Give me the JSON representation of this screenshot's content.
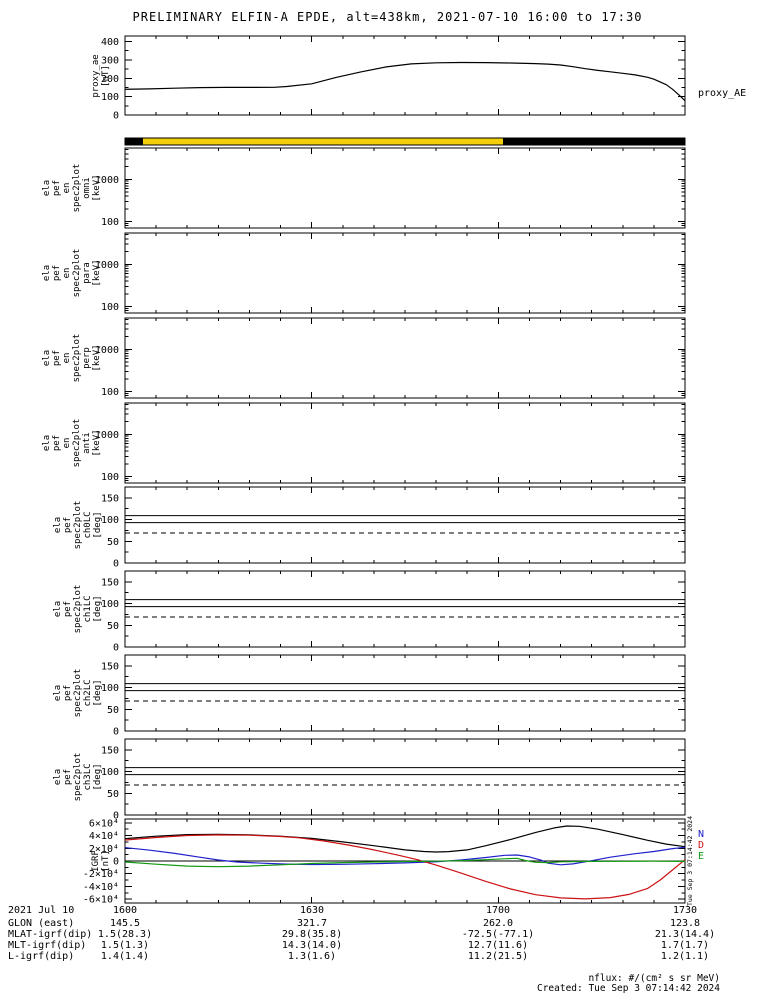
{
  "title": "PRELIMINARY ELFIN-A EPDE, alt=438km, 2021-07-10 16:00 to 17:30",
  "side": {
    "proxy_right_label": "proxy_AE",
    "vertical_timestamp": "Tue Sep 3 07:14:42 2024",
    "igrf_legend": [
      {
        "label": "N",
        "color": "#2020cc"
      },
      {
        "label": "D",
        "color": "#cc1111"
      },
      {
        "label": "E",
        "color": "#119911"
      }
    ]
  },
  "bottom": {
    "date": "2021 Jul 10",
    "time_ticks": [
      "1600",
      "1630",
      "1700",
      "1730"
    ],
    "rows": [
      {
        "label": "GLON (east)",
        "values": [
          "145.5",
          "321.7",
          "262.0",
          "123.8"
        ]
      },
      {
        "label": "MLAT-igrf(dip)",
        "values": [
          "1.5(28.3)",
          "29.8(35.8)",
          "-72.5(-77.1)",
          "21.3(14.4)"
        ]
      },
      {
        "label": "MLT-igrf(dip)",
        "values": [
          "1.5(1.3)",
          "14.3(14.0)",
          "12.7(11.6)",
          "1.7(1.7)"
        ]
      },
      {
        "label": "L-igrf(dip)",
        "values": [
          "1.4(1.4)",
          "1.3(1.6)",
          "11.2(21.5)",
          "1.2(1.1)"
        ]
      }
    ]
  },
  "footer": {
    "nflux": "nflux: #/(cm² s sr MeV)",
    "created": "Created: Tue Sep 3 07:14:42 2024"
  },
  "chart_data": {
    "type": "line",
    "description": "Multi-panel time-series plot (ELFIN-A EPDE survey), x axis 16:00 to 17:30 UT on 2021-07-10",
    "x_axis": {
      "minutes_range": [
        0,
        90
      ],
      "major_minutes": [
        0,
        30,
        60,
        90
      ],
      "minor_step_minutes": 5,
      "tick_labels": [
        "1600",
        "1630",
        "1700",
        "1730"
      ],
      "date": "2021 Jul 10"
    },
    "panels": [
      {
        "id": "proxy",
        "kind": "line",
        "ylabel_lines": [
          "proxy_ae",
          "[nT]"
        ],
        "ylim": [
          0,
          430
        ],
        "yticks": [
          {
            "v": 0,
            "label": "0"
          },
          {
            "v": 100,
            "label": "100"
          },
          {
            "v": 200,
            "label": "200"
          },
          {
            "v": 300,
            "label": "300"
          },
          {
            "v": 400,
            "label": "400"
          }
        ],
        "yminor": [
          50,
          150,
          250,
          350
        ],
        "series": [
          {
            "name": "proxy_AE",
            "color": "#000000",
            "x": [
              0,
              4,
              8,
              12,
              16,
              20,
              24,
              26,
              30,
              34,
              38,
              42,
              46,
              50,
              54,
              58,
              62,
              66,
              68,
              70,
              72,
              74,
              76,
              78,
              80,
              82,
              84,
              85,
              86,
              87,
              88,
              89,
              90
            ],
            "y": [
              140,
              142,
              146,
              149,
              150,
              150,
              151,
              155,
              170,
              205,
              235,
              262,
              278,
              284,
              286,
              285,
              283,
              280,
              277,
              272,
              263,
              252,
              243,
              235,
              227,
              218,
              205,
              195,
              180,
              165,
              140,
              110,
              78
            ]
          }
        ]
      },
      {
        "id": "bar",
        "kind": "strip",
        "segments": [
          {
            "from": 0,
            "to": 0.032,
            "color": "#000000"
          },
          {
            "from": 0.032,
            "to": 0.675,
            "color": "#f3cf0a"
          },
          {
            "from": 0.675,
            "to": 1,
            "color": "#000000"
          }
        ]
      },
      {
        "id": "omni",
        "kind": "empty",
        "yscale": "log",
        "ylabel_lines": [
          "ela",
          "pef",
          "en",
          "spec2plot",
          "omni",
          "[keV]"
        ],
        "ylim": [
          70,
          5500
        ],
        "yticks": [
          {
            "v": 100,
            "label": "100"
          },
          {
            "v": 1000,
            "label": "1000"
          }
        ],
        "yminor": [
          80,
          90,
          200,
          300,
          400,
          500,
          600,
          700,
          800,
          900,
          2000,
          3000,
          4000,
          5000
        ],
        "series": []
      },
      {
        "id": "para",
        "kind": "empty",
        "yscale": "log",
        "ylabel_lines": [
          "ela",
          "pef",
          "en",
          "spec2plot",
          "para",
          "[keV]"
        ],
        "ylim": [
          70,
          5500
        ],
        "yticks": [
          {
            "v": 100,
            "label": "100"
          },
          {
            "v": 1000,
            "label": "1000"
          }
        ],
        "yminor": [
          80,
          90,
          200,
          300,
          400,
          500,
          600,
          700,
          800,
          900,
          2000,
          3000,
          4000,
          5000
        ],
        "series": []
      },
      {
        "id": "perp",
        "kind": "empty",
        "yscale": "log",
        "ylabel_lines": [
          "ela",
          "pef",
          "en",
          "spec2plot",
          "perp",
          "[keV]"
        ],
        "ylim": [
          70,
          5500
        ],
        "yticks": [
          {
            "v": 100,
            "label": "100"
          },
          {
            "v": 1000,
            "label": "1000"
          }
        ],
        "yminor": [
          80,
          90,
          200,
          300,
          400,
          500,
          600,
          700,
          800,
          900,
          2000,
          3000,
          4000,
          5000
        ],
        "series": []
      },
      {
        "id": "anti",
        "kind": "empty",
        "yscale": "log",
        "ylabel_lines": [
          "ela",
          "pef",
          "en",
          "spec2plot",
          "anti",
          "[keV]"
        ],
        "ylim": [
          70,
          5500
        ],
        "yticks": [
          {
            "v": 100,
            "label": "100"
          },
          {
            "v": 1000,
            "label": "1000"
          }
        ],
        "yminor": [
          80,
          90,
          200,
          300,
          400,
          500,
          600,
          700,
          800,
          900,
          2000,
          3000,
          4000,
          5000
        ],
        "series": []
      },
      {
        "id": "ch0",
        "kind": "hlines",
        "ylabel_lines": [
          "ela",
          "pef",
          "spec2plot",
          "ch0LC",
          "[deg]"
        ],
        "ylim": [
          0,
          175
        ],
        "yticks": [
          {
            "v": 0,
            "label": "0"
          },
          {
            "v": 50,
            "label": "50"
          },
          {
            "v": 100,
            "label": "100"
          },
          {
            "v": 150,
            "label": "150"
          }
        ],
        "yminor": [
          25,
          75,
          125
        ],
        "hlines_solid": [
          109,
          93
        ],
        "hlines_dashed": [
          69
        ],
        "series": []
      },
      {
        "id": "ch1",
        "kind": "hlines",
        "ylabel_lines": [
          "ela",
          "pef",
          "spec2plot",
          "ch1LC",
          "[deg]"
        ],
        "ylim": [
          0,
          175
        ],
        "yticks": [
          {
            "v": 0,
            "label": "0"
          },
          {
            "v": 50,
            "label": "50"
          },
          {
            "v": 100,
            "label": "100"
          },
          {
            "v": 150,
            "label": "150"
          }
        ],
        "yminor": [
          25,
          75,
          125
        ],
        "hlines_solid": [
          109,
          93
        ],
        "hlines_dashed": [
          69
        ],
        "series": []
      },
      {
        "id": "ch2",
        "kind": "hlines",
        "ylabel_lines": [
          "ela",
          "pef",
          "spec2plot",
          "ch2LC",
          "[deg]"
        ],
        "ylim": [
          0,
          175
        ],
        "yticks": [
          {
            "v": 0,
            "label": "0"
          },
          {
            "v": 50,
            "label": "50"
          },
          {
            "v": 100,
            "label": "100"
          },
          {
            "v": 150,
            "label": "150"
          }
        ],
        "yminor": [
          25,
          75,
          125
        ],
        "hlines_solid": [
          109,
          93
        ],
        "hlines_dashed": [
          69
        ],
        "series": []
      },
      {
        "id": "ch3",
        "kind": "hlines",
        "ylabel_lines": [
          "ela",
          "pef",
          "spec2plot",
          "ch3LC",
          "[deg]"
        ],
        "ylim": [
          0,
          175
        ],
        "yticks": [
          {
            "v": 0,
            "label": "0"
          },
          {
            "v": 50,
            "label": "50"
          },
          {
            "v": 100,
            "label": "100"
          },
          {
            "v": 150,
            "label": "150"
          }
        ],
        "yminor": [
          25,
          75,
          125
        ],
        "hlines_solid": [
          109,
          93
        ],
        "hlines_dashed": [
          69
        ],
        "series": []
      },
      {
        "id": "igrf",
        "kind": "line",
        "ylabel_lines": [
          "IGRF",
          "[nT]"
        ],
        "ylim": [
          -66000,
          66000
        ],
        "yticks": [
          {
            "v": 60000,
            "label": "6×10⁴"
          },
          {
            "v": 40000,
            "label": "4×10⁴"
          },
          {
            "v": 20000,
            "label": "2×10⁴"
          },
          {
            "v": 0,
            "label": "0"
          },
          {
            "v": -20000,
            "label": "-2×10⁴"
          },
          {
            "v": -40000,
            "label": "-4×10⁴"
          },
          {
            "v": -60000,
            "label": "-6×10⁴"
          }
        ],
        "yminor": [
          -50000,
          -30000,
          -10000,
          10000,
          30000,
          50000
        ],
        "zero_line": true,
        "series": [
          {
            "name": "Bmag",
            "color": "#000000",
            "x": [
              0,
              5,
              10,
              15,
              20,
              25,
              30,
              35,
              40,
              45,
              48,
              50,
              52,
              55,
              58,
              62,
              66,
              69,
              71,
              73,
              76,
              80,
              84,
              87,
              90
            ],
            "y": [
              35000,
              39000,
              41500,
              42000,
              41000,
              39000,
              35500,
              30000,
              24000,
              17500,
              15000,
              14200,
              14800,
              17500,
              24000,
              34000,
              45000,
              52000,
              55000,
              54500,
              50000,
              41500,
              32500,
              26500,
              22500
            ]
          },
          {
            "name": "N",
            "color": "#2020cc",
            "x": [
              0,
              4,
              8,
              12,
              15,
              18,
              22,
              26,
              30,
              35,
              40,
              45,
              50,
              54,
              58,
              61,
              63,
              65,
              67,
              68,
              70,
              72,
              75,
              78,
              82,
              85,
              88,
              90
            ],
            "y": [
              21000,
              17000,
              12000,
              6000,
              1500,
              -1500,
              -3500,
              -4800,
              -5500,
              -5200,
              -4200,
              -3000,
              -1200,
              1500,
              5500,
              9000,
              9500,
              6500,
              1000,
              -3500,
              -6000,
              -4500,
              500,
              6000,
              11500,
              15000,
              19500,
              21500
            ]
          },
          {
            "name": "D",
            "color": "#cc1111",
            "x": [
              0,
              5,
              10,
              15,
              20,
              25,
              28,
              32,
              36,
              40,
              44,
              47,
              50,
              54,
              58,
              62,
              66,
              70,
              74,
              78,
              81,
              84,
              86,
              88,
              90
            ],
            "y": [
              33000,
              37000,
              40000,
              41000,
              40500,
              38500,
              36500,
              31500,
              25000,
              17500,
              9000,
              2000,
              -6500,
              -19000,
              -32000,
              -44000,
              -53000,
              -58000,
              -59500,
              -57500,
              -52500,
              -43000,
              -30000,
              -14000,
              2000
            ]
          },
          {
            "name": "E",
            "color": "#119911",
            "x": [
              0,
              5,
              10,
              15,
              20,
              25,
              30,
              35,
              40,
              45,
              50,
              55,
              58,
              61,
              63,
              64,
              65,
              66,
              68,
              70,
              75,
              80,
              85,
              90
            ],
            "y": [
              -1500,
              -5000,
              -8000,
              -9000,
              -8000,
              -6000,
              -4000,
              -2500,
              -1500,
              -800,
              -300,
              800,
              2000,
              3500,
              4200,
              1500,
              -500,
              -2000,
              -2500,
              -1200,
              -600,
              -400,
              -300,
              -600
            ]
          }
        ]
      }
    ]
  }
}
